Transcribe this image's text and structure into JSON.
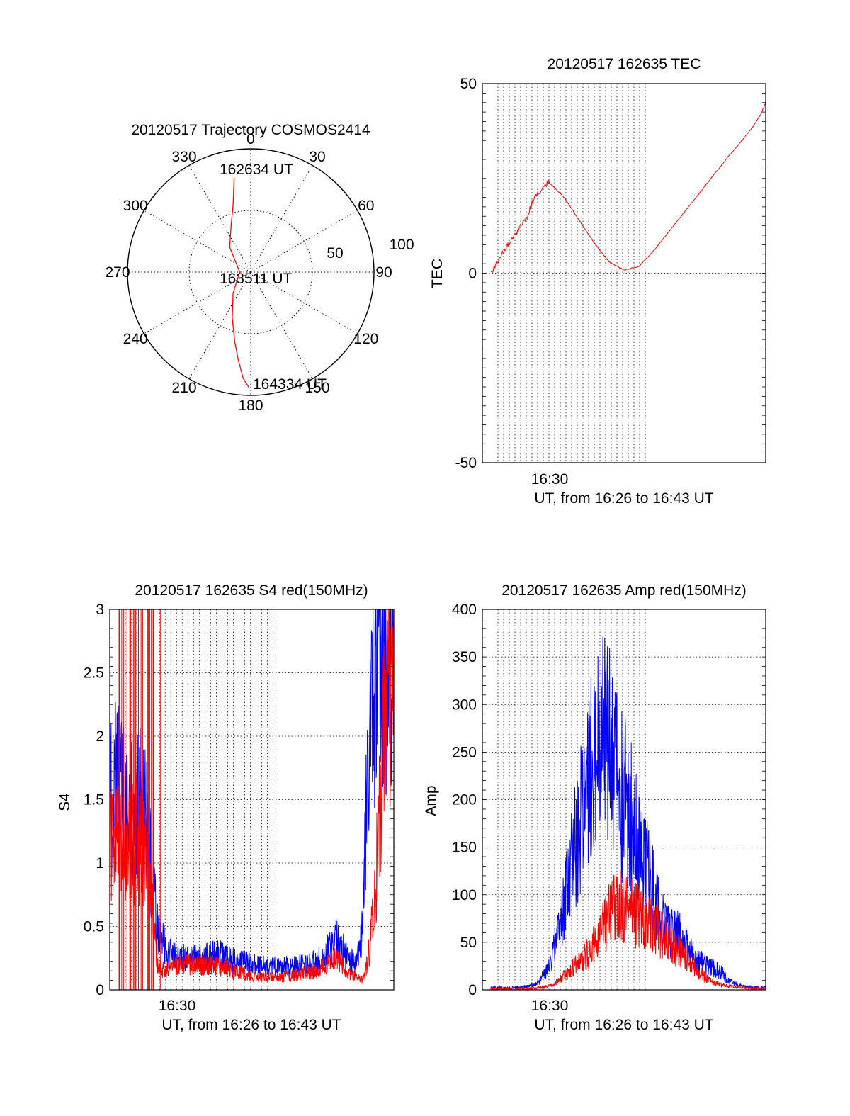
{
  "colors": {
    "red": "#ff0000",
    "blue": "#0000ff",
    "axis": "#000000"
  },
  "chart_data": [
    {
      "type": "polar",
      "title": "20120517 Trajectory COSMOS2414",
      "azimuth_labels": [
        "0",
        "30",
        "60",
        "90",
        "120",
        "150",
        "180",
        "210",
        "240",
        "270",
        "300",
        "330"
      ],
      "radial_labels": [
        "50",
        "100"
      ],
      "grid": true,
      "series": [
        {
          "color": "red",
          "points": [
            {
              "az": 350,
              "el": 20
            },
            {
              "az": 348,
              "el": 30
            },
            {
              "az": 345,
              "el": 40
            },
            {
              "az": 338,
              "el": 52
            },
            {
              "az": 320,
              "el": 66
            },
            {
              "az": 270,
              "el": 82
            },
            {
              "az": 220,
              "el": 70
            },
            {
              "az": 202,
              "el": 54
            },
            {
              "az": 193,
              "el": 38
            },
            {
              "az": 188,
              "el": 25
            },
            {
              "az": 184,
              "el": 12
            },
            {
              "az": 181,
              "el": 6
            }
          ]
        }
      ],
      "annotations": [
        "162634 UT",
        "163511 UT",
        "164334 UT"
      ]
    },
    {
      "type": "line",
      "title": "20120517 162635 TEC",
      "xlabel": "UT, from 16:26 to 16:43 UT",
      "ylabel": "TEC",
      "x_tick_label": "16:30",
      "xlim": [
        16.4333,
        16.7167
      ],
      "ylim": [
        -50,
        50
      ],
      "y_ticks": [
        "50",
        "0",
        "-50"
      ],
      "grid": true,
      "series": [
        {
          "color": "red",
          "x": [
            16.4417,
            16.455,
            16.468,
            16.478,
            16.485,
            16.5,
            16.515,
            16.53,
            16.545,
            16.56,
            16.575,
            16.59,
            16.605,
            16.62,
            16.635,
            16.65,
            16.665,
            16.68,
            16.69,
            16.705,
            16.712,
            16.7167
          ],
          "y": [
            0,
            6,
            11,
            15,
            20,
            24,
            20,
            14,
            8,
            3,
            0.8,
            1.8,
            6,
            11,
            16,
            21,
            26,
            31,
            34,
            39,
            42,
            45
          ]
        }
      ]
    },
    {
      "type": "line",
      "title": "20120517 162635 S4 red(150MHz)",
      "xlabel": "UT, from 16:26 to 16:43 UT",
      "ylabel": "S4",
      "x_tick_label": "16:30",
      "xlim": [
        16.4333,
        16.7167
      ],
      "ylim": [
        0,
        3
      ],
      "y_ticks": [
        "0",
        "0.5",
        "1",
        "1.5",
        "2",
        "2.5",
        "3"
      ],
      "grid": true,
      "series": [
        {
          "color": "blue",
          "x": [
            16.4333,
            16.44,
            16.45,
            16.46,
            16.47,
            16.475,
            16.48,
            16.49,
            16.5,
            16.52,
            16.54,
            16.56,
            16.58,
            16.6,
            16.62,
            16.64,
            16.65,
            16.66,
            16.67,
            16.68,
            16.685,
            16.69,
            16.695,
            16.7,
            16.705,
            16.71,
            16.7167
          ],
          "y": [
            1.5,
            1.6,
            1.4,
            1.5,
            1.3,
            1.0,
            0.5,
            0.3,
            0.25,
            0.25,
            0.28,
            0.22,
            0.2,
            0.18,
            0.19,
            0.22,
            0.3,
            0.4,
            0.25,
            0.2,
            0.5,
            1.5,
            2.2,
            2.8,
            2.9,
            2.7,
            3.0
          ]
        },
        {
          "color": "red",
          "x": [
            16.4333,
            16.44,
            16.45,
            16.46,
            16.47,
            16.475,
            16.48,
            16.49,
            16.5,
            16.52,
            16.54,
            16.56,
            16.58,
            16.6,
            16.62,
            16.64,
            16.65,
            16.66,
            16.67,
            16.68,
            16.685,
            16.69,
            16.695,
            16.7,
            16.705,
            16.71,
            16.7167
          ],
          "y": [
            1.2,
            1.3,
            1.1,
            1.2,
            1.0,
            0.8,
            0.2,
            0.15,
            0.2,
            0.2,
            0.18,
            0.15,
            0.1,
            0.1,
            0.12,
            0.15,
            0.2,
            0.25,
            0.15,
            0.1,
            0.08,
            0.2,
            0.5,
            1.0,
            1.8,
            2.2,
            2.3
          ]
        }
      ]
    },
    {
      "type": "line",
      "title": "20120517 162635 Amp red(150MHz)",
      "xlabel": "UT, from 16:26 to 16:43 UT",
      "ylabel": "Amp",
      "x_tick_label": "16:30",
      "xlim": [
        16.4333,
        16.7167
      ],
      "ylim": [
        0,
        400
      ],
      "y_ticks": [
        "0",
        "50",
        "100",
        "150",
        "200",
        "250",
        "300",
        "350",
        "400"
      ],
      "grid": true,
      "series": [
        {
          "color": "blue",
          "x": [
            16.4417,
            16.47,
            16.48,
            16.49,
            16.5,
            16.51,
            16.52,
            16.53,
            16.54,
            16.55,
            16.56,
            16.57,
            16.58,
            16.59,
            16.6,
            16.61,
            16.62,
            16.63,
            16.64,
            16.65,
            16.66,
            16.67,
            16.68,
            16.69,
            16.7,
            16.71,
            16.7167
          ],
          "y": [
            2,
            2,
            4,
            8,
            25,
            60,
            120,
            170,
            230,
            280,
            250,
            210,
            190,
            150,
            120,
            80,
            60,
            60,
            40,
            30,
            25,
            20,
            10,
            5,
            3,
            2,
            2
          ]
        },
        {
          "color": "red",
          "x": [
            16.4417,
            16.47,
            16.48,
            16.49,
            16.5,
            16.51,
            16.52,
            16.53,
            16.54,
            16.55,
            16.56,
            16.57,
            16.58,
            16.59,
            16.6,
            16.61,
            16.62,
            16.63,
            16.64,
            16.65,
            16.66,
            16.67,
            16.68,
            16.69,
            16.7,
            16.71,
            16.7167
          ],
          "y": [
            1,
            1,
            1,
            2,
            4,
            10,
            20,
            28,
            40,
            55,
            80,
            90,
            85,
            75,
            70,
            60,
            50,
            40,
            30,
            18,
            10,
            6,
            4,
            3,
            2,
            1,
            1
          ]
        }
      ]
    }
  ]
}
